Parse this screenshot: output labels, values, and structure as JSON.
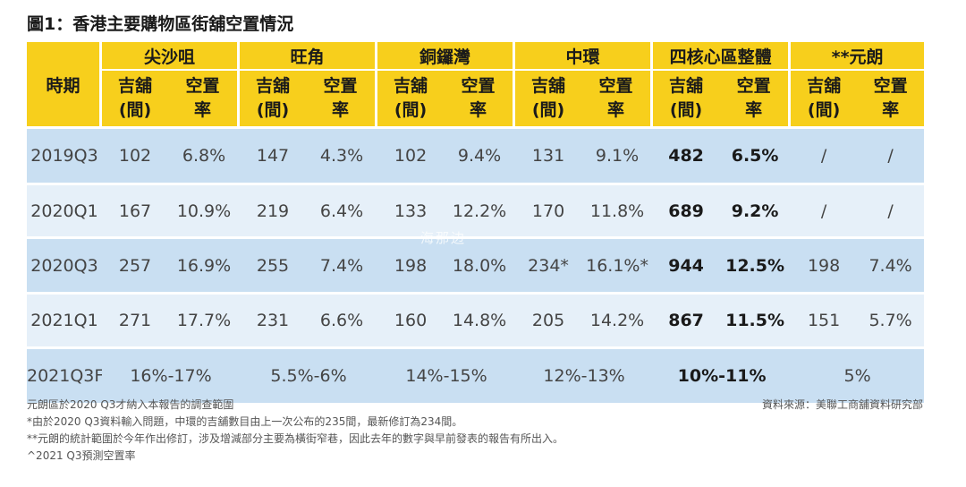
{
  "title": "圖1：香港主要購物區街舖空置情況",
  "table": {
    "period_header": "時期",
    "districts": [
      "尖沙咀",
      "旺角",
      "銅鑼灣",
      "中環",
      "四核心區整體",
      "**元朗"
    ],
    "sub_shops": [
      "吉舖",
      "(間)"
    ],
    "sub_rate": [
      "空置",
      "率"
    ],
    "rows": [
      {
        "period": "2019Q3",
        "values": [
          "102",
          "6.8%",
          "147",
          "4.3%",
          "102",
          "9.4%",
          "131",
          "9.1%",
          "482",
          "6.5%",
          "/",
          "/"
        ]
      },
      {
        "period": "2020Q1",
        "values": [
          "167",
          "10.9%",
          "219",
          "6.4%",
          "133",
          "12.2%",
          "170",
          "11.8%",
          "689",
          "9.2%",
          "/",
          "/"
        ]
      },
      {
        "period": "2020Q3",
        "values": [
          "257",
          "16.9%",
          "255",
          "7.4%",
          "198",
          "18.0%",
          "234*",
          "16.1%*",
          "944",
          "12.5%",
          "198",
          "7.4%"
        ]
      },
      {
        "period": "2021Q1",
        "values": [
          "271",
          "17.7%",
          "231",
          "6.6%",
          "160",
          "14.8%",
          "205",
          "14.2%",
          "867",
          "11.5%",
          "151",
          "5.7%"
        ]
      }
    ],
    "forecast": {
      "period": "2021Q3F^",
      "values": [
        "16%-17%",
        "5.5%-6%",
        "14%-15%",
        "12%-13%",
        "10%-11%",
        "5%"
      ]
    }
  },
  "watermark": "海那边",
  "notes": [
    "元朗區於2020 Q3才納入本報告的調查範圍",
    "*由於2020 Q3資料輸入問題，中環的吉舖數目由上一次公布的235間，最新修訂為234間。",
    "**元朗的統計範圍於今年作出修訂，涉及增減部分主要為橫街窄巷，因此去年的數字與早前發表的報告有所出入。",
    "^2021 Q3預測空置率"
  ],
  "source": "資料來源：美聯工商舖資料研究部",
  "colors": {
    "header": "#f7cf1c",
    "row_dark": "#c9dff2",
    "row_light": "#e6f0f9"
  }
}
